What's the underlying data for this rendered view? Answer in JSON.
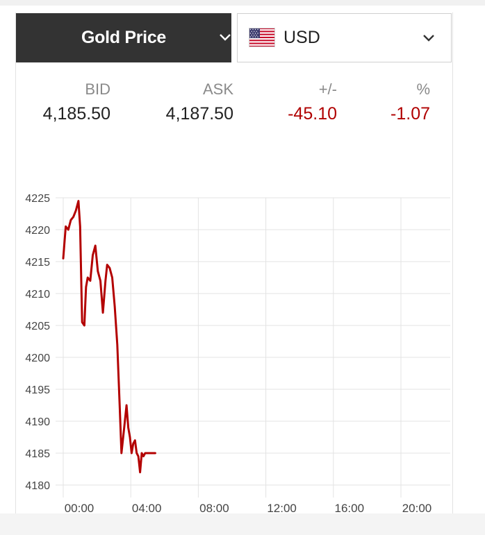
{
  "selectors": {
    "metal": {
      "label": "Gold Price",
      "icon": "chevron-down-icon"
    },
    "currency": {
      "label": "USD",
      "flag_icon": "us-flag-icon",
      "icon": "chevron-down-icon"
    }
  },
  "quote": {
    "headers": {
      "bid": "BID",
      "ask": "ASK",
      "change": "+/-",
      "percent": "%"
    },
    "bid": "4,185.50",
    "ask": "4,187.50",
    "change": "-45.10",
    "percent": "-1.07"
  },
  "colors": {
    "line": "#b30000",
    "negative": "#b00000",
    "dark_header": "#333333",
    "grid": "#e3e3e3"
  },
  "chart_data": {
    "type": "line",
    "title": "",
    "xlabel": "",
    "ylabel": "",
    "x_ticks": [
      "00:00",
      "04:00",
      "08:00",
      "12:00",
      "16:00",
      "20:00"
    ],
    "y_ticks": [
      4225,
      4220,
      4215,
      4210,
      4205,
      4200,
      4195,
      4190,
      4185,
      4180
    ],
    "xlim_hours": [
      0,
      22.5
    ],
    "ylim": [
      4179,
      4226
    ],
    "grid": true,
    "series": [
      {
        "name": "Gold Price (USD)",
        "x_hours": [
          0,
          0.15,
          0.3,
          0.45,
          0.6,
          0.75,
          0.9,
          1.0,
          1.12,
          1.25,
          1.35,
          1.45,
          1.6,
          1.75,
          1.9,
          2.05,
          2.2,
          2.35,
          2.5,
          2.6,
          2.75,
          2.9,
          3.05,
          3.2,
          3.35,
          3.45,
          3.55,
          3.65,
          3.75,
          3.85,
          3.95,
          4.05,
          4.15,
          4.25,
          4.35,
          4.45,
          4.55,
          4.65,
          4.75,
          4.85,
          4.95,
          5.05,
          5.15,
          5.25,
          5.35,
          5.45
        ],
        "values": [
          4215.5,
          4220.5,
          4220.0,
          4221.5,
          4222.0,
          4223.0,
          4224.5,
          4220.5,
          4205.5,
          4205.0,
          4211.0,
          4212.5,
          4212.0,
          4216.0,
          4217.5,
          4213.5,
          4212.0,
          4207.0,
          4212.0,
          4214.5,
          4214.0,
          4212.5,
          4208.0,
          4202.0,
          4192.0,
          4185.0,
          4187.5,
          4190.0,
          4192.5,
          4189.0,
          4187.5,
          4185.0,
          4186.5,
          4187.0,
          4185.0,
          4184.5,
          4182.0,
          4185.0,
          4184.5,
          4185.0,
          4185.0,
          4185.0,
          4185.0,
          4185.0,
          4185.0,
          4185.0
        ]
      }
    ]
  }
}
